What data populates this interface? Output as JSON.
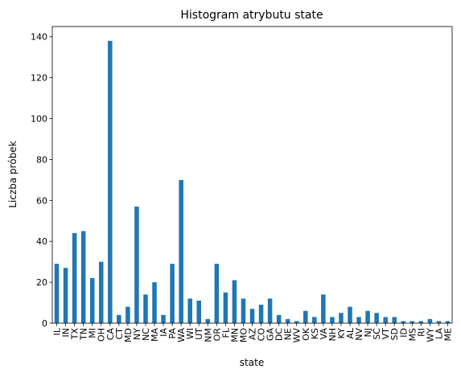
{
  "chart_data": {
    "type": "bar",
    "title": "Histogram atrybutu state",
    "xlabel": "state",
    "ylabel": "Liczba próbek",
    "ylim": [
      0,
      145
    ],
    "yticks": [
      0,
      20,
      40,
      60,
      80,
      100,
      120,
      140
    ],
    "grid": false,
    "bar_color": "#1f77b4",
    "categories": [
      "IL",
      "IN",
      "TX",
      "TN",
      "MI",
      "OH",
      "CA",
      "CT",
      "MD",
      "NY",
      "NC",
      "MA",
      "IA",
      "PA",
      "WA",
      "WI",
      "UT",
      "NM",
      "OR",
      "FL",
      "MN",
      "MO",
      "AZ",
      "CO",
      "GA",
      "DC",
      "NE",
      "WV",
      "OK",
      "KS",
      "VA",
      "NH",
      "KY",
      "AL",
      "NV",
      "NJ",
      "SC",
      "VT",
      "SD",
      "ID",
      "MS",
      "RI",
      "WY",
      "LA",
      "ME"
    ],
    "values": [
      29,
      27,
      44,
      45,
      22,
      30,
      138,
      4,
      8,
      57,
      14,
      20,
      4,
      29,
      70,
      12,
      11,
      2,
      29,
      15,
      21,
      12,
      7,
      9,
      12,
      4,
      2,
      1,
      6,
      3,
      14,
      3,
      5,
      8,
      3,
      6,
      5,
      3,
      3,
      1,
      1,
      1,
      2,
      1,
      1
    ]
  }
}
